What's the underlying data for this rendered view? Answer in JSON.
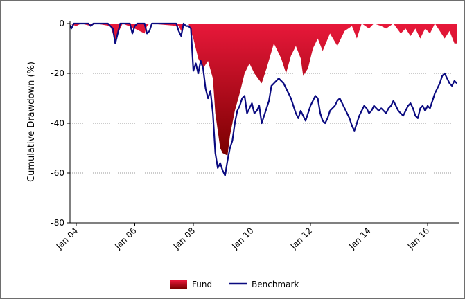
{
  "chart_data": {
    "type": "area",
    "title": "",
    "ylabel": "Cumulative Drawdown (%)",
    "xlabel": "",
    "ylim": [
      -80,
      0
    ],
    "yticks": [
      0,
      -20,
      -40,
      -60,
      -80
    ],
    "xlim": [
      "2003-10",
      "2017-01"
    ],
    "xticks": [
      "2004-01",
      "2006-01",
      "2008-01",
      "2010-01",
      "2012-01",
      "2014-01",
      "2016-01"
    ],
    "xtick_labels": [
      "Jan 04",
      "Jan 06",
      "Jan 08",
      "Jan 10",
      "Jan 12",
      "Jan 14",
      "Jan 16"
    ],
    "grid": "horizontal dotted",
    "legend_placement": "bottom-center",
    "series": [
      {
        "name": "Fund",
        "style": "area",
        "color_top": "#e8183a",
        "color_bottom": "#7a0000",
        "points": [
          [
            "2003-10",
            0
          ],
          [
            "2004-01",
            -1
          ],
          [
            "2004-03",
            0
          ],
          [
            "2004-07",
            -1
          ],
          [
            "2004-09",
            0
          ],
          [
            "2005-03",
            -1
          ],
          [
            "2005-05",
            -7
          ],
          [
            "2005-07",
            -2
          ],
          [
            "2005-08",
            0
          ],
          [
            "2006-01",
            -2
          ],
          [
            "2006-05",
            -4
          ],
          [
            "2006-06",
            -1
          ],
          [
            "2006-07",
            0
          ],
          [
            "2007-07",
            -1
          ],
          [
            "2007-08",
            -3
          ],
          [
            "2007-09",
            0
          ],
          [
            "2007-11",
            0
          ],
          [
            "2008-01",
            -6
          ],
          [
            "2008-03",
            -14
          ],
          [
            "2008-05",
            -18
          ],
          [
            "2008-07",
            -15
          ],
          [
            "2008-09",
            -22
          ],
          [
            "2008-10",
            -36
          ],
          [
            "2008-11",
            -43
          ],
          [
            "2008-12",
            -50
          ],
          [
            "2009-01",
            -52
          ],
          [
            "2009-03",
            -53
          ],
          [
            "2009-04",
            -45
          ],
          [
            "2009-06",
            -35
          ],
          [
            "2009-08",
            -28
          ],
          [
            "2009-10",
            -20
          ],
          [
            "2009-12",
            -16
          ],
          [
            "2010-02",
            -20
          ],
          [
            "2010-05",
            -24
          ],
          [
            "2010-07",
            -18
          ],
          [
            "2010-10",
            -8
          ],
          [
            "2011-01",
            -14
          ],
          [
            "2011-03",
            -20
          ],
          [
            "2011-05",
            -13
          ],
          [
            "2011-07",
            -9
          ],
          [
            "2011-09",
            -14
          ],
          [
            "2011-10",
            -21
          ],
          [
            "2011-12",
            -18
          ],
          [
            "2012-02",
            -10
          ],
          [
            "2012-04",
            -6
          ],
          [
            "2012-06",
            -11
          ],
          [
            "2012-09",
            -4
          ],
          [
            "2012-12",
            -9
          ],
          [
            "2013-03",
            -3
          ],
          [
            "2013-06",
            -1
          ],
          [
            "2013-08",
            -6
          ],
          [
            "2013-10",
            0
          ],
          [
            "2014-01",
            -2
          ],
          [
            "2014-03",
            0
          ],
          [
            "2014-06",
            -1
          ],
          [
            "2014-08",
            -2
          ],
          [
            "2014-11",
            0
          ],
          [
            "2015-02",
            -4
          ],
          [
            "2015-04",
            -2
          ],
          [
            "2015-06",
            -5
          ],
          [
            "2015-08",
            -2
          ],
          [
            "2015-10",
            -6
          ],
          [
            "2015-12",
            -2
          ],
          [
            "2016-02",
            -4
          ],
          [
            "2016-04",
            0
          ],
          [
            "2016-06",
            -3
          ],
          [
            "2016-08",
            -6
          ],
          [
            "2016-10",
            -3
          ],
          [
            "2016-12",
            -8
          ],
          [
            "2017-01",
            -8
          ]
        ]
      },
      {
        "name": "Benchmark",
        "style": "line",
        "color": "#0a0a80",
        "points": [
          [
            "2003-10",
            0
          ],
          [
            "2003-11",
            -2
          ],
          [
            "2003-12",
            0
          ],
          [
            "2004-06",
            0
          ],
          [
            "2004-07",
            -1
          ],
          [
            "2004-08",
            0
          ],
          [
            "2005-02",
            0
          ],
          [
            "2005-04",
            -2
          ],
          [
            "2005-05",
            -8
          ],
          [
            "2005-06",
            -4
          ],
          [
            "2005-07",
            0
          ],
          [
            "2005-11",
            0
          ],
          [
            "2005-12",
            -4
          ],
          [
            "2006-01",
            -1
          ],
          [
            "2006-02",
            0
          ],
          [
            "2006-05",
            0
          ],
          [
            "2006-06",
            -4
          ],
          [
            "2006-07",
            -3
          ],
          [
            "2006-08",
            0
          ],
          [
            "2007-06",
            0
          ],
          [
            "2007-07",
            -3
          ],
          [
            "2007-08",
            -5
          ],
          [
            "2007-09",
            0
          ],
          [
            "2007-10",
            -1
          ],
          [
            "2007-11",
            -1
          ],
          [
            "2007-12",
            -2
          ],
          [
            "2008-01",
            -19
          ],
          [
            "2008-02",
            -16
          ],
          [
            "2008-03",
            -20
          ],
          [
            "2008-04",
            -15
          ],
          [
            "2008-05",
            -18
          ],
          [
            "2008-06",
            -26
          ],
          [
            "2008-07",
            -30
          ],
          [
            "2008-08",
            -27
          ],
          [
            "2008-09",
            -36
          ],
          [
            "2008-10",
            -52
          ],
          [
            "2008-11",
            -58
          ],
          [
            "2008-12",
            -56
          ],
          [
            "2009-01",
            -59
          ],
          [
            "2009-02",
            -61
          ],
          [
            "2009-03",
            -55
          ],
          [
            "2009-04",
            -50
          ],
          [
            "2009-05",
            -47
          ],
          [
            "2009-06",
            -40
          ],
          [
            "2009-07",
            -35
          ],
          [
            "2009-08",
            -33
          ],
          [
            "2009-09",
            -30
          ],
          [
            "2009-10",
            -29
          ],
          [
            "2009-11",
            -36
          ],
          [
            "2009-12",
            -34
          ],
          [
            "2010-01",
            -32
          ],
          [
            "2010-02",
            -36
          ],
          [
            "2010-03",
            -35
          ],
          [
            "2010-04",
            -33
          ],
          [
            "2010-05",
            -40
          ],
          [
            "2010-06",
            -37
          ],
          [
            "2010-07",
            -34
          ],
          [
            "2010-08",
            -31
          ],
          [
            "2010-09",
            -25
          ],
          [
            "2010-10",
            -24
          ],
          [
            "2010-11",
            -23
          ],
          [
            "2010-12",
            -22
          ],
          [
            "2011-01",
            -23
          ],
          [
            "2011-02",
            -24
          ],
          [
            "2011-03",
            -26
          ],
          [
            "2011-04",
            -28
          ],
          [
            "2011-05",
            -30
          ],
          [
            "2011-06",
            -33
          ],
          [
            "2011-07",
            -36
          ],
          [
            "2011-08",
            -38
          ],
          [
            "2011-09",
            -35
          ],
          [
            "2011-10",
            -37
          ],
          [
            "2011-11",
            -39
          ],
          [
            "2011-12",
            -36
          ],
          [
            "2012-01",
            -33
          ],
          [
            "2012-02",
            -31
          ],
          [
            "2012-03",
            -29
          ],
          [
            "2012-04",
            -30
          ],
          [
            "2012-05",
            -36
          ],
          [
            "2012-06",
            -39
          ],
          [
            "2012-07",
            -40
          ],
          [
            "2012-08",
            -38
          ],
          [
            "2012-09",
            -35
          ],
          [
            "2012-10",
            -34
          ],
          [
            "2012-11",
            -33
          ],
          [
            "2012-12",
            -31
          ],
          [
            "2013-01",
            -30
          ],
          [
            "2013-02",
            -32
          ],
          [
            "2013-03",
            -34
          ],
          [
            "2013-04",
            -36
          ],
          [
            "2013-05",
            -38
          ],
          [
            "2013-06",
            -41
          ],
          [
            "2013-07",
            -43
          ],
          [
            "2013-08",
            -40
          ],
          [
            "2013-09",
            -37
          ],
          [
            "2013-10",
            -35
          ],
          [
            "2013-11",
            -33
          ],
          [
            "2013-12",
            -34
          ],
          [
            "2014-01",
            -36
          ],
          [
            "2014-02",
            -35
          ],
          [
            "2014-03",
            -33
          ],
          [
            "2014-04",
            -34
          ],
          [
            "2014-05",
            -35
          ],
          [
            "2014-06",
            -34
          ],
          [
            "2014-07",
            -35
          ],
          [
            "2014-08",
            -36
          ],
          [
            "2014-09",
            -34
          ],
          [
            "2014-10",
            -33
          ],
          [
            "2014-11",
            -31
          ],
          [
            "2014-12",
            -33
          ],
          [
            "2015-01",
            -35
          ],
          [
            "2015-02",
            -36
          ],
          [
            "2015-03",
            -37
          ],
          [
            "2015-04",
            -35
          ],
          [
            "2015-05",
            -33
          ],
          [
            "2015-06",
            -32
          ],
          [
            "2015-07",
            -34
          ],
          [
            "2015-08",
            -37
          ],
          [
            "2015-09",
            -38
          ],
          [
            "2015-10",
            -34
          ],
          [
            "2015-11",
            -33
          ],
          [
            "2015-12",
            -35
          ],
          [
            "2016-01",
            -33
          ],
          [
            "2016-02",
            -34
          ],
          [
            "2016-03",
            -31
          ],
          [
            "2016-04",
            -28
          ],
          [
            "2016-05",
            -26
          ],
          [
            "2016-06",
            -24
          ],
          [
            "2016-07",
            -21
          ],
          [
            "2016-08",
            -20
          ],
          [
            "2016-09",
            -22
          ],
          [
            "2016-10",
            -24
          ],
          [
            "2016-11",
            -25
          ],
          [
            "2016-12",
            -23
          ],
          [
            "2017-01",
            -24
          ]
        ]
      }
    ]
  },
  "legend": {
    "items": [
      {
        "label": "Fund",
        "kind": "gradient-box",
        "color_top": "#e8183a",
        "color_bottom": "#7a0000"
      },
      {
        "label": "Benchmark",
        "kind": "line",
        "color": "#0a0a80"
      }
    ]
  }
}
